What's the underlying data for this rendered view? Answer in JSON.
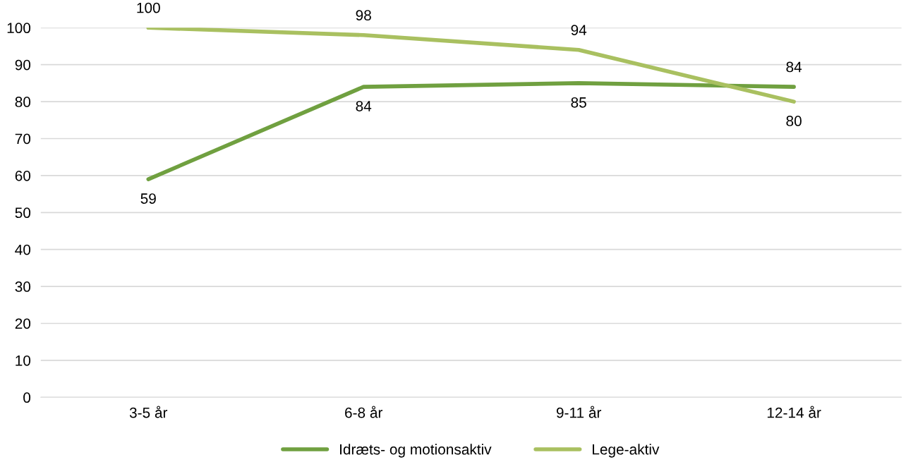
{
  "chart_data": {
    "type": "line",
    "categories": [
      "3-5 år",
      "6-8 år",
      "9-11 år",
      "12-14 år"
    ],
    "series": [
      {
        "name": "Idræts- og motionsaktiv",
        "color": "#70a040",
        "values": [
          59,
          84,
          85,
          84
        ]
      },
      {
        "name": "Lege-aktiv",
        "color": "#a9c060",
        "values": [
          100,
          98,
          94,
          80
        ]
      }
    ],
    "ylim": [
      0,
      100
    ],
    "yticks": [
      0,
      10,
      20,
      30,
      40,
      50,
      60,
      70,
      80,
      90,
      100
    ],
    "grid": "y",
    "legend": "bottom",
    "data_labels": true,
    "marker": "none",
    "line_style": "solid"
  }
}
